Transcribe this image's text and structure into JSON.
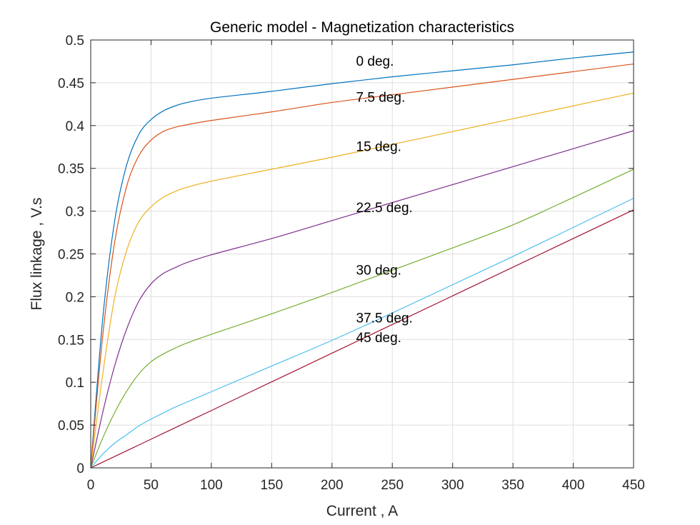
{
  "chart_data": {
    "type": "line",
    "title": "Generic model - Magnetization characteristics",
    "xlabel": "Current , A",
    "ylabel": "Flux linkage , V.s",
    "xlim": [
      0,
      450
    ],
    "ylim": [
      0,
      0.5
    ],
    "xticks": [
      0,
      50,
      100,
      150,
      200,
      250,
      300,
      350,
      400,
      450
    ],
    "xtick_labels": [
      "0",
      "50",
      "100",
      "150",
      "200",
      "250",
      "300",
      "350",
      "400",
      "450"
    ],
    "yticks": [
      0,
      0.05,
      0.1,
      0.15,
      0.2,
      0.25,
      0.3,
      0.35,
      0.4,
      0.45,
      0.5
    ],
    "ytick_labels": [
      "0",
      "0.05",
      "0.1",
      "0.15",
      "0.2",
      "0.25",
      "0.3",
      "0.35",
      "0.4",
      "0.45",
      "0.5"
    ],
    "grid": true,
    "legend": "none",
    "x": [
      0,
      10,
      20,
      30,
      40,
      50,
      60,
      70,
      80,
      100,
      150,
      200,
      250,
      300,
      350,
      400,
      450
    ],
    "series": [
      {
        "name": "0 deg.",
        "color": "#0072BD",
        "values": [
          0,
          0.175,
          0.29,
          0.355,
          0.39,
          0.407,
          0.417,
          0.423,
          0.427,
          0.432,
          0.44,
          0.449,
          0.457,
          0.464,
          0.471,
          0.479,
          0.486
        ]
      },
      {
        "name": "7.5 deg.",
        "color": "#D95319",
        "values": [
          0,
          0.155,
          0.265,
          0.33,
          0.365,
          0.383,
          0.393,
          0.398,
          0.401,
          0.406,
          0.416,
          0.427,
          0.436,
          0.445,
          0.454,
          0.463,
          0.472
        ]
      },
      {
        "name": "15 deg.",
        "color": "#EDB120",
        "values": [
          0,
          0.11,
          0.2,
          0.255,
          0.288,
          0.305,
          0.316,
          0.323,
          0.328,
          0.335,
          0.349,
          0.363,
          0.378,
          0.393,
          0.408,
          0.423,
          0.438
        ]
      },
      {
        "name": "22.5 deg.",
        "color": "#7E2F8E",
        "values": [
          0,
          0.065,
          0.12,
          0.163,
          0.195,
          0.215,
          0.227,
          0.234,
          0.24,
          0.249,
          0.268,
          0.289,
          0.31,
          0.331,
          0.352,
          0.373,
          0.394
        ]
      },
      {
        "name": "30 deg.",
        "color": "#77AC30",
        "values": [
          0,
          0.035,
          0.065,
          0.09,
          0.11,
          0.124,
          0.133,
          0.14,
          0.146,
          0.156,
          0.18,
          0.205,
          0.231,
          0.257,
          0.284,
          0.316,
          0.349
        ]
      },
      {
        "name": "37.5 deg.",
        "color": "#4DBEEE",
        "values": [
          0,
          0.016,
          0.029,
          0.039,
          0.049,
          0.057,
          0.064,
          0.071,
          0.077,
          0.089,
          0.119,
          0.149,
          0.181,
          0.214,
          0.247,
          0.281,
          0.315
        ]
      },
      {
        "name": "45 deg.",
        "color": "#A2142F",
        "values": [
          0,
          0.0067,
          0.0134,
          0.0201,
          0.0268,
          0.0335,
          0.0402,
          0.0469,
          0.0536,
          0.067,
          0.1005,
          0.134,
          0.1675,
          0.201,
          0.2345,
          0.268,
          0.3015
        ]
      }
    ],
    "annotations": [
      {
        "text": "0 deg.",
        "x": 220,
        "y": 0.47
      },
      {
        "text": "7.5 deg.",
        "x": 220,
        "y": 0.428
      },
      {
        "text": "15 deg.",
        "x": 220,
        "y": 0.37
      },
      {
        "text": "22.5 deg.",
        "x": 220,
        "y": 0.299
      },
      {
        "text": "30 deg.",
        "x": 220,
        "y": 0.226
      },
      {
        "text": "37.5 deg.",
        "x": 220,
        "y": 0.17
      },
      {
        "text": "45 deg.",
        "x": 220,
        "y": 0.147
      }
    ]
  }
}
